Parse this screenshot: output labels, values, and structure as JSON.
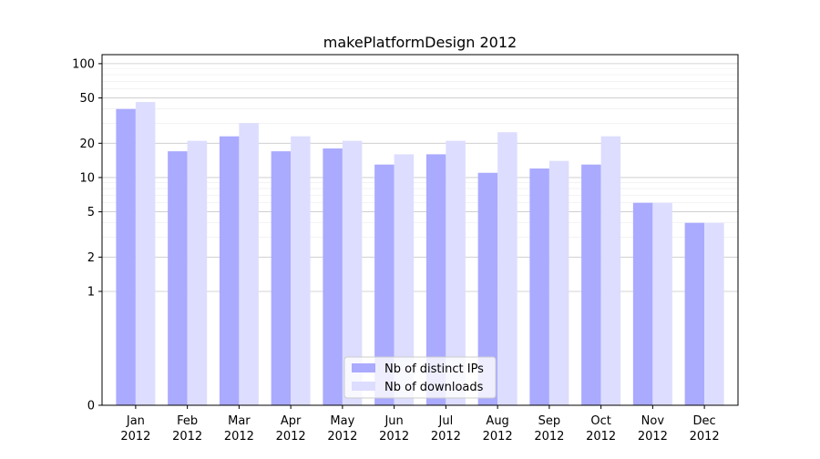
{
  "chart_data": {
    "type": "bar",
    "title": "makePlatformDesign 2012",
    "xlabel": "",
    "ylabel": "",
    "yscale": "symlog",
    "ylim": [
      0,
      120
    ],
    "yticks": [
      0,
      1,
      2,
      5,
      10,
      20,
      50,
      100
    ],
    "categories": [
      {
        "month": "Jan",
        "year": "2012"
      },
      {
        "month": "Feb",
        "year": "2012"
      },
      {
        "month": "Mar",
        "year": "2012"
      },
      {
        "month": "Apr",
        "year": "2012"
      },
      {
        "month": "May",
        "year": "2012"
      },
      {
        "month": "Jun",
        "year": "2012"
      },
      {
        "month": "Jul",
        "year": "2012"
      },
      {
        "month": "Aug",
        "year": "2012"
      },
      {
        "month": "Sep",
        "year": "2012"
      },
      {
        "month": "Oct",
        "year": "2012"
      },
      {
        "month": "Nov",
        "year": "2012"
      },
      {
        "month": "Dec",
        "year": "2012"
      }
    ],
    "series": [
      {
        "name": "Nb of distinct IPs",
        "color": "#aaaaff",
        "values": [
          40,
          17,
          23,
          17,
          18,
          13,
          16,
          11,
          12,
          13,
          6,
          4
        ]
      },
      {
        "name": "Nb of downloads",
        "color": "#ddddff",
        "values": [
          46,
          21,
          30,
          23,
          21,
          16,
          21,
          25,
          14,
          23,
          6,
          4
        ]
      }
    ],
    "grid": true,
    "legend": "bottom-center"
  }
}
